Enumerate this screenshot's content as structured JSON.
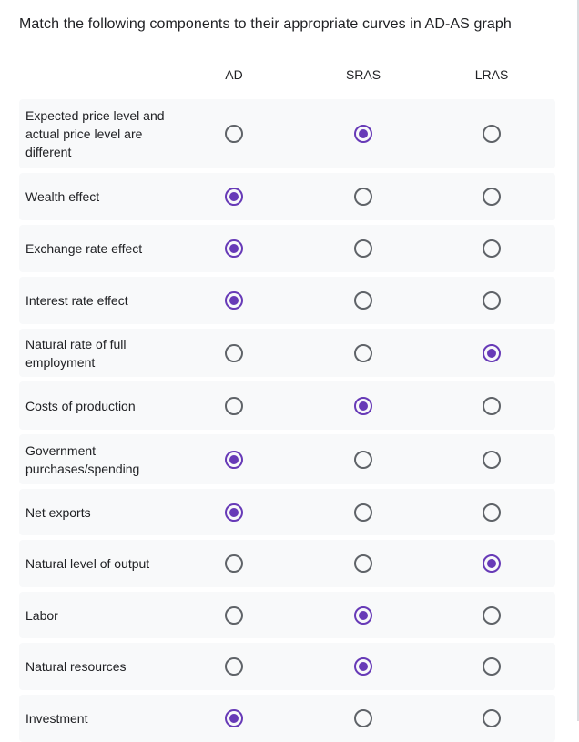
{
  "question": {
    "title": "Match the following components to their appropriate curves in AD-AS graph"
  },
  "columns": [
    "AD",
    "SRAS",
    "LRAS"
  ],
  "colors": {
    "accent": "#673ab7",
    "row_bg": "#f8f9fa",
    "radio_unchecked": "#5f6368"
  },
  "rows": [
    {
      "label": "Expected price level and actual price level are different",
      "selected": "SRAS"
    },
    {
      "label": "Wealth effect",
      "selected": "AD"
    },
    {
      "label": "Exchange rate effect",
      "selected": "AD"
    },
    {
      "label": "Interest rate effect",
      "selected": "AD"
    },
    {
      "label": "Natural rate of full employment",
      "selected": "LRAS"
    },
    {
      "label": "Costs of production",
      "selected": "SRAS"
    },
    {
      "label": "Government purchases/spending",
      "selected": "AD"
    },
    {
      "label": "Net exports",
      "selected": "AD"
    },
    {
      "label": "Natural level of output",
      "selected": "LRAS"
    },
    {
      "label": "Labor",
      "selected": "SRAS"
    },
    {
      "label": "Natural resources",
      "selected": "SRAS"
    },
    {
      "label": "Investment",
      "selected": "AD"
    }
  ]
}
